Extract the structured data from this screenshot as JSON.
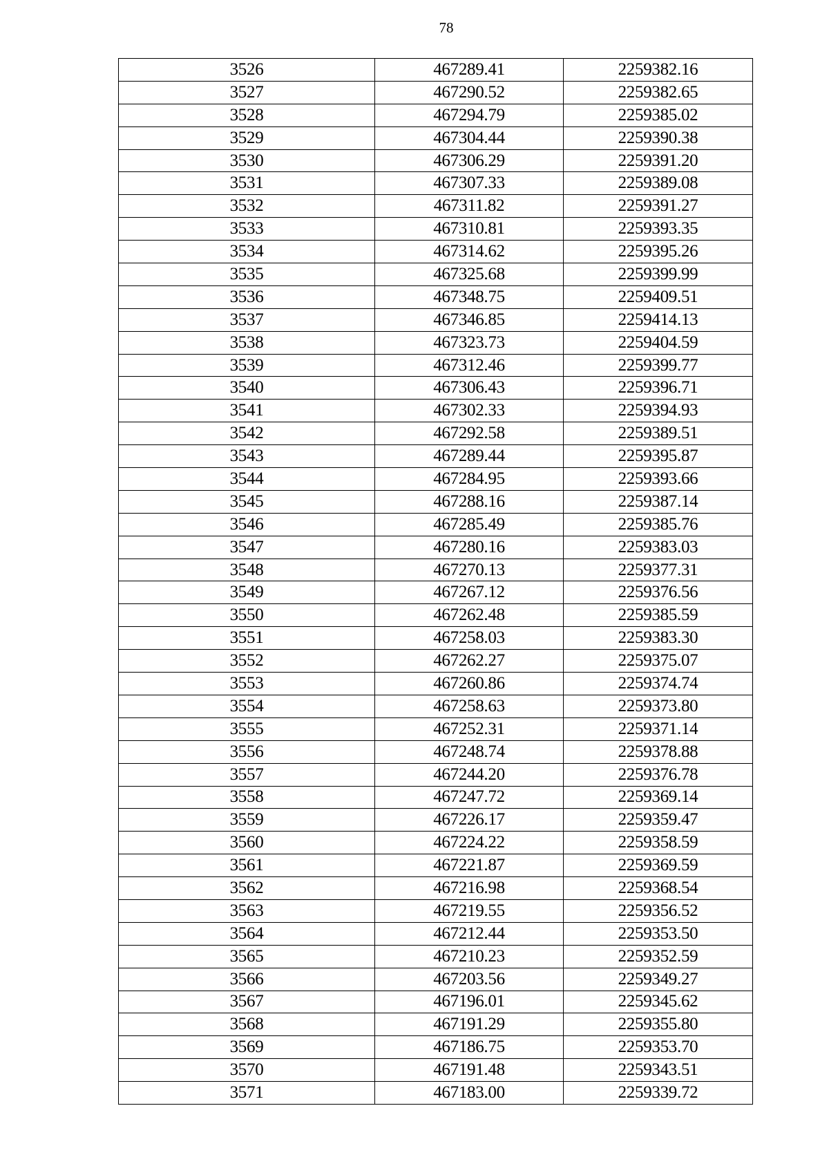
{
  "page_number": "78",
  "table": {
    "rows": [
      [
        "3526",
        "467289.41",
        "2259382.16"
      ],
      [
        "3527",
        "467290.52",
        "2259382.65"
      ],
      [
        "3528",
        "467294.79",
        "2259385.02"
      ],
      [
        "3529",
        "467304.44",
        "2259390.38"
      ],
      [
        "3530",
        "467306.29",
        "2259391.20"
      ],
      [
        "3531",
        "467307.33",
        "2259389.08"
      ],
      [
        "3532",
        "467311.82",
        "2259391.27"
      ],
      [
        "3533",
        "467310.81",
        "2259393.35"
      ],
      [
        "3534",
        "467314.62",
        "2259395.26"
      ],
      [
        "3535",
        "467325.68",
        "2259399.99"
      ],
      [
        "3536",
        "467348.75",
        "2259409.51"
      ],
      [
        "3537",
        "467346.85",
        "2259414.13"
      ],
      [
        "3538",
        "467323.73",
        "2259404.59"
      ],
      [
        "3539",
        "467312.46",
        "2259399.77"
      ],
      [
        "3540",
        "467306.43",
        "2259396.71"
      ],
      [
        "3541",
        "467302.33",
        "2259394.93"
      ],
      [
        "3542",
        "467292.58",
        "2259389.51"
      ],
      [
        "3543",
        "467289.44",
        "2259395.87"
      ],
      [
        "3544",
        "467284.95",
        "2259393.66"
      ],
      [
        "3545",
        "467288.16",
        "2259387.14"
      ],
      [
        "3546",
        "467285.49",
        "2259385.76"
      ],
      [
        "3547",
        "467280.16",
        "2259383.03"
      ],
      [
        "3548",
        "467270.13",
        "2259377.31"
      ],
      [
        "3549",
        "467267.12",
        "2259376.56"
      ],
      [
        "3550",
        "467262.48",
        "2259385.59"
      ],
      [
        "3551",
        "467258.03",
        "2259383.30"
      ],
      [
        "3552",
        "467262.27",
        "2259375.07"
      ],
      [
        "3553",
        "467260.86",
        "2259374.74"
      ],
      [
        "3554",
        "467258.63",
        "2259373.80"
      ],
      [
        "3555",
        "467252.31",
        "2259371.14"
      ],
      [
        "3556",
        "467248.74",
        "2259378.88"
      ],
      [
        "3557",
        "467244.20",
        "2259376.78"
      ],
      [
        "3558",
        "467247.72",
        "2259369.14"
      ],
      [
        "3559",
        "467226.17",
        "2259359.47"
      ],
      [
        "3560",
        "467224.22",
        "2259358.59"
      ],
      [
        "3561",
        "467221.87",
        "2259369.59"
      ],
      [
        "3562",
        "467216.98",
        "2259368.54"
      ],
      [
        "3563",
        "467219.55",
        "2259356.52"
      ],
      [
        "3564",
        "467212.44",
        "2259353.50"
      ],
      [
        "3565",
        "467210.23",
        "2259352.59"
      ],
      [
        "3566",
        "467203.56",
        "2259349.27"
      ],
      [
        "3567",
        "467196.01",
        "2259345.62"
      ],
      [
        "3568",
        "467191.29",
        "2259355.80"
      ],
      [
        "3569",
        "467186.75",
        "2259353.70"
      ],
      [
        "3570",
        "467191.48",
        "2259343.51"
      ],
      [
        "3571",
        "467183.00",
        "2259339.72"
      ]
    ]
  }
}
